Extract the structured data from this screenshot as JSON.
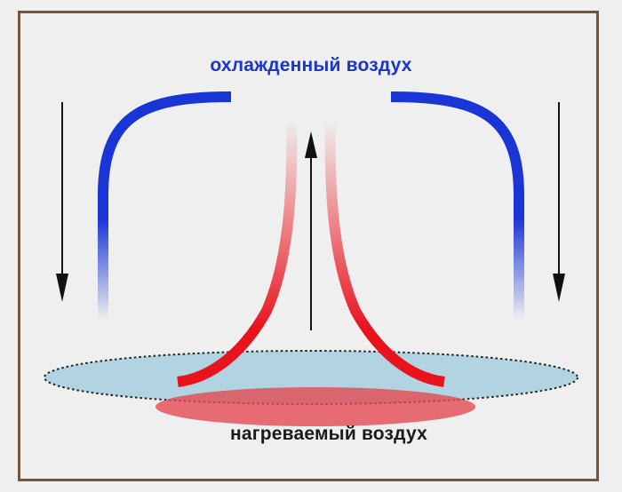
{
  "labels": {
    "cooled_air": "охлажденный воздух",
    "heated_air": "нагреваемый воздух"
  },
  "colors": {
    "cold": "#1a35d6",
    "hot": "#e8131d",
    "frame": "#6e5643",
    "surface": "#a9cde0",
    "arrow": "#111111"
  },
  "icons": {
    "down_arrow": "down-arrow-icon",
    "up_arrow": "up-arrow-icon"
  }
}
